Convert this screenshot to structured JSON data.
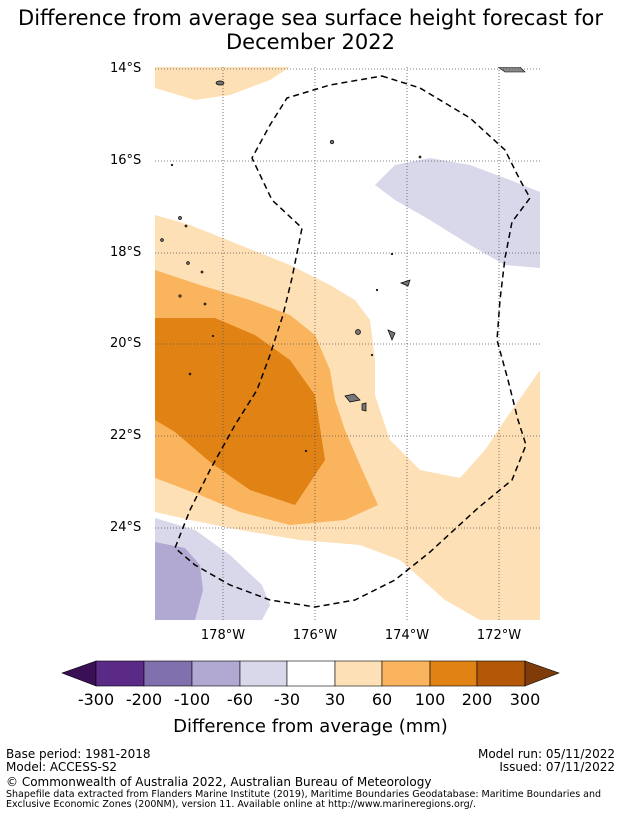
{
  "title": {
    "line1": "Difference from average sea surface height forecast for",
    "line2": "December 2022"
  },
  "axes": {
    "lat_labels": [
      "14°S",
      "16°S",
      "18°S",
      "20°S",
      "22°S",
      "24°S"
    ],
    "lon_labels": [
      "178°W",
      "176°W",
      "174°W",
      "172°W"
    ]
  },
  "colorbar": {
    "ticks": [
      "-300",
      "-200",
      "-100",
      "-60",
      "-30",
      "30",
      "60",
      "100",
      "200",
      "300"
    ],
    "colors": [
      "#3b0f56",
      "#5b2a86",
      "#8070ad",
      "#b2a9d2",
      "#d8d8ea",
      "#ffffff",
      "#fee0b6",
      "#fbb45e",
      "#e08214",
      "#b35806",
      "#7f3b08"
    ],
    "title": "Difference from average (mm)"
  },
  "footer": {
    "base_period": "Base period: 1981-2018",
    "model": "Model: ACCESS-S2",
    "model_run": "Model run: 05/11/2022",
    "issued": "Issued: 07/11/2022",
    "copyright": "© Commonwealth of Australia 2022, Australian Bureau of Meteorology",
    "shapefile_line1": "Shapefile data extracted from Flanders Marine Institute (2019), Maritime Boundaries Geodatabase: Maritime Boundaries and",
    "shapefile_line2": "Exclusive Economic Zones (200NM), version 11. Available online at http://www.marineregions.org/."
  }
}
